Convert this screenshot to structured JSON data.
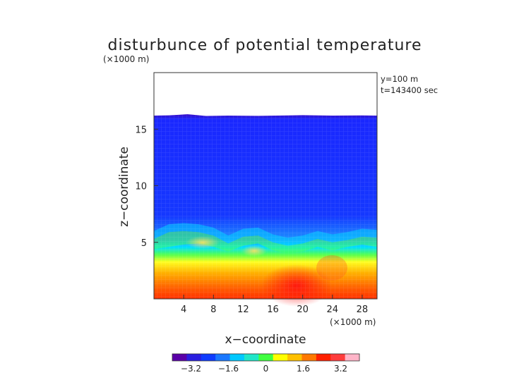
{
  "chart_data": {
    "type": "heatmap",
    "title": "disturbunce of potential temperature",
    "y_unit_label": "(×1000 m)",
    "x_unit_label": "(×1000 m)",
    "xlabel": "x−coordinate",
    "ylabel": "z−coordinate",
    "annotations": [
      "y=100 m",
      "t=143400 sec"
    ],
    "x_range": [
      0,
      30
    ],
    "y_range": [
      0,
      20
    ],
    "x_ticks": [
      4,
      8,
      12,
      16,
      20,
      24,
      28
    ],
    "x_tick_labels": [
      "4",
      "8",
      "12",
      "16",
      "20",
      "24",
      "28"
    ],
    "y_ticks": [
      5,
      10,
      15
    ],
    "y_tick_labels": [
      "5",
      "10",
      "15"
    ],
    "data_top_z": 16.2,
    "colorbar": {
      "range": [
        -4,
        4
      ],
      "ticks": [
        -3.2,
        -1.6,
        0,
        1.6,
        3.2
      ],
      "tick_labels": [
        "−3.2",
        "−1.6",
        "0",
        "1.6",
        "3.2"
      ],
      "colors": [
        "#5a00a8",
        "#2a1ee0",
        "#0f3cff",
        "#1a78ff",
        "#00c8ff",
        "#20e6c8",
        "#40ff40",
        "#ffff00",
        "#ffc000",
        "#ff7800",
        "#ff2000",
        "#ff3c3c",
        "#ffb4c8"
      ]
    }
  }
}
